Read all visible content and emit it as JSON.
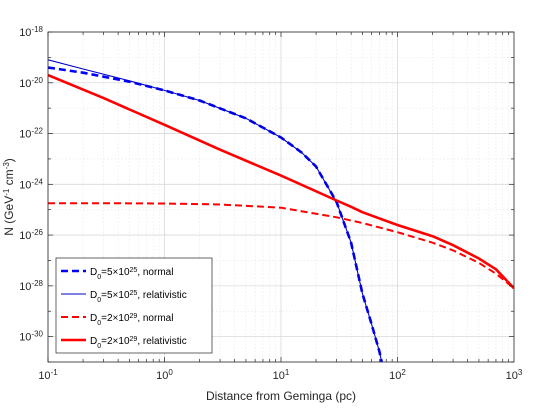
{
  "chart_data": {
    "type": "line",
    "xscale": "log",
    "yscale": "log",
    "xlim": [
      0.1,
      1000
    ],
    "ylim": [
      1e-31,
      1e-18
    ],
    "grid": true,
    "legend_position": "bottom-left",
    "xlabel": {
      "main": "Distance from Geminga (pc)"
    },
    "ylabel": {
      "main": "N (GeV",
      "sup1": "-1",
      "mid": " cm",
      "sup2": "-3",
      "end": ")"
    },
    "x_ticks": [
      {
        "value": 0.1,
        "base": "10",
        "exp": "-1"
      },
      {
        "value": 1,
        "base": "10",
        "exp": "0"
      },
      {
        "value": 10,
        "base": "10",
        "exp": "1"
      },
      {
        "value": 100,
        "base": "10",
        "exp": "2"
      },
      {
        "value": 1000,
        "base": "10",
        "exp": "3"
      }
    ],
    "y_ticks": [
      {
        "value": 1e-30,
        "base": "10",
        "exp": "-30"
      },
      {
        "value": 1e-28,
        "base": "10",
        "exp": "-28"
      },
      {
        "value": 1e-26,
        "base": "10",
        "exp": "-26"
      },
      {
        "value": 1e-24,
        "base": "10",
        "exp": "-24"
      },
      {
        "value": 1e-22,
        "base": "10",
        "exp": "-22"
      },
      {
        "value": 1e-20,
        "base": "10",
        "exp": "-20"
      },
      {
        "value": 1e-18,
        "base": "10",
        "exp": "-18"
      }
    ],
    "series": [
      {
        "name": "D0=5×10^25, normal",
        "label": {
          "D": "D",
          "sub": "0",
          "eq": "=5×10",
          "sup": "25",
          "tail": ", normal"
        },
        "color": "#0000ff",
        "style": "dashed",
        "width": 2.6,
        "x": [
          0.1,
          0.2,
          0.5,
          1,
          2,
          5,
          10,
          15,
          20,
          30,
          40,
          50,
          60,
          70,
          75
        ],
        "y": [
          4e-20,
          2.5e-20,
          1.1e-20,
          5e-21,
          2e-21,
          4e-22,
          7e-23,
          1.8e-23,
          5e-24,
          2e-25,
          5e-27,
          5e-29,
          3e-30,
          2.5e-31,
          6e-32
        ]
      },
      {
        "name": "D0=5×10^25, relativistic",
        "label": {
          "D": "D",
          "sub": "0",
          "eq": "=5×10",
          "sup": "25",
          "tail": ", relativistic"
        },
        "color": "#0000cc",
        "style": "solid",
        "width": 1.1,
        "x": [
          0.1,
          0.2,
          0.5,
          1,
          2,
          5,
          10,
          15,
          20,
          30,
          40,
          50,
          60,
          70,
          75
        ],
        "y": [
          8e-20,
          3.5e-20,
          1.2e-20,
          5e-21,
          2e-21,
          4e-22,
          7e-23,
          1.8e-23,
          5e-24,
          2e-25,
          5e-27,
          5e-29,
          3e-30,
          2.5e-31,
          6e-32
        ]
      },
      {
        "name": "D0=2×10^29, normal",
        "label": {
          "D": "D",
          "sub": "0",
          "eq": "=2×10",
          "sup": "29",
          "tail": ", normal"
        },
        "color": "#ff0000",
        "style": "dashed",
        "width": 2.0,
        "x": [
          0.1,
          0.3,
          1,
          3,
          10,
          30,
          50,
          100,
          200,
          300,
          500,
          700,
          1000
        ],
        "y": [
          1.8e-25,
          1.8e-25,
          1.75e-25,
          1.6e-25,
          1.2e-25,
          5e-26,
          3e-26,
          1.3e-26,
          5e-27,
          2.5e-27,
          8e-28,
          3e-28,
          8e-29
        ]
      },
      {
        "name": "D0=2×10^29, relativistic",
        "label": {
          "D": "D",
          "sub": "0",
          "eq": "=2×10",
          "sup": "29",
          "tail": ", relativistic"
        },
        "color": "#ff0000",
        "style": "solid",
        "width": 2.6,
        "x": [
          0.1,
          0.3,
          1,
          3,
          10,
          30,
          40,
          50,
          100,
          200,
          300,
          500,
          700,
          1000
        ],
        "y": [
          2e-20,
          2.5e-21,
          2.2e-22,
          2.3e-23,
          2.2e-24,
          2.3e-25,
          1.3e-25,
          8e-26,
          2.5e-26,
          9e-27,
          4e-27,
          1.2e-27,
          4.5e-28,
          8e-29
        ]
      }
    ]
  }
}
